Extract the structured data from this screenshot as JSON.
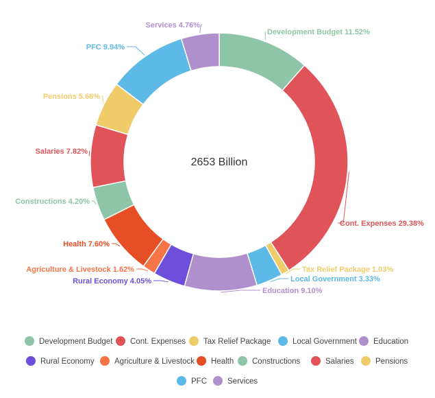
{
  "chart_data": {
    "type": "pie",
    "variant": "donut",
    "center_label": "2653 Billion",
    "slices": [
      {
        "name": "Development Budget",
        "value": 11.52,
        "label": "Development Budget 11.52%",
        "color": "#8ec4a7"
      },
      {
        "name": "Cont. Expenses",
        "value": 29.38,
        "label": "Cont. Expenses 29.38%",
        "color": "#e05459"
      },
      {
        "name": "Tax Relief Package",
        "value": 1.03,
        "label": "Tax Relief Package  1.03%",
        "color": "#f0cb69"
      },
      {
        "name": "Local Government",
        "value": 3.33,
        "label": "Local Government  3.33%",
        "color": "#5db9e6"
      },
      {
        "name": "Education",
        "value": 9.1,
        "label": "Education 9.10%",
        "color": "#b08fcd"
      },
      {
        "name": "Rural Economy",
        "value": 4.05,
        "label": "Rural Economy 4.05%",
        "color": "#6e4fdc"
      },
      {
        "name": "Agriculture & Livestock",
        "value": 1.62,
        "label": "Agriculture & Livestock 1.62%",
        "color": "#f77446"
      },
      {
        "name": "Health",
        "value": 7.6,
        "label": "Health 7.60%",
        "color": "#e64e25"
      },
      {
        "name": "Constructions",
        "value": 4.2,
        "label": "Constructions 4.20%",
        "color": "#8ec4a7"
      },
      {
        "name": "Salaries",
        "value": 7.82,
        "label": "Salaries 7.82%",
        "color": "#e05459"
      },
      {
        "name": "Pensions",
        "value": 5.66,
        "label": "Pensions 5.66%",
        "color": "#f0cb69"
      },
      {
        "name": "PFC",
        "value": 9.94,
        "label": "PFC 9.94%",
        "color": "#5db9e6"
      },
      {
        "name": "Services",
        "value": 4.76,
        "label": "Services 4.76%",
        "color": "#b08fcd"
      }
    ],
    "legend_position": "bottom"
  }
}
